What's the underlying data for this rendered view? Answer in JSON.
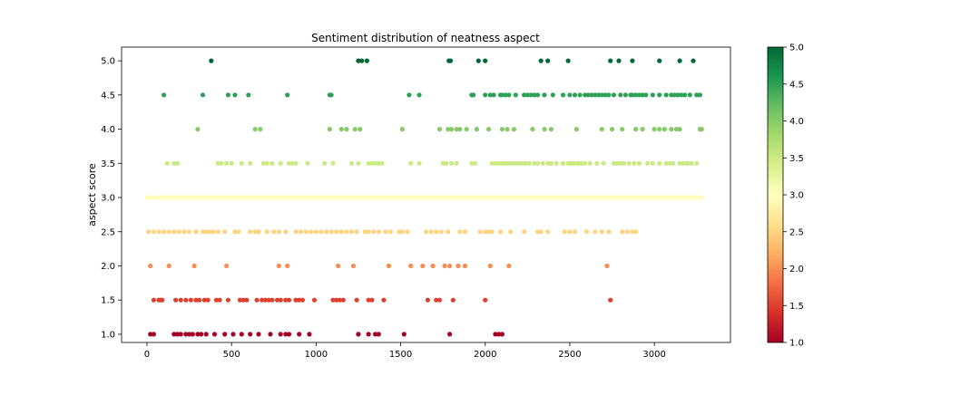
{
  "chart_data": {
    "type": "scatter",
    "title": "Sentiment distribution of neatness aspect",
    "xlabel": "",
    "ylabel": "aspect score",
    "xlim": [
      -150,
      3450
    ],
    "ylim": [
      0.88,
      5.2
    ],
    "x_ticks": [
      0,
      500,
      1000,
      1500,
      2000,
      2500,
      3000
    ],
    "y_ticks": [
      1.0,
      1.5,
      2.0,
      2.5,
      3.0,
      3.5,
      4.0,
      4.5,
      5.0
    ],
    "colorbar": {
      "label": "",
      "range": [
        1.0,
        5.0
      ],
      "ticks": [
        1.0,
        1.5,
        2.0,
        2.5,
        3.0,
        3.5,
        4.0,
        4.5,
        5.0
      ],
      "colormap": "RdYlGn",
      "colors": [
        "#a50026",
        "#d73027",
        "#f46d43",
        "#fdae61",
        "#fee08b",
        "#ffffbf",
        "#d9ef8b",
        "#a6d96a",
        "#66bd63",
        "#1a9850",
        "#006837"
      ]
    },
    "grid": false,
    "legend": "none",
    "series": [
      {
        "y": 5.0,
        "x": [
          380,
          1250,
          1270,
          1300,
          1785,
          1795,
          1960,
          2000,
          2330,
          2370,
          2490,
          2740,
          2790,
          2870,
          3030,
          3150,
          3230
        ]
      },
      {
        "y": 4.5,
        "x": [
          100,
          330,
          480,
          520,
          600,
          830,
          1080,
          1090,
          1550,
          1610,
          1920,
          1930,
          2000,
          2030,
          2050,
          2090,
          2100,
          2120,
          2140,
          2180,
          2230,
          2250,
          2270,
          2290,
          2310,
          2350,
          2400,
          2460,
          2500,
          2530,
          2560,
          2590,
          2610,
          2630,
          2650,
          2670,
          2690,
          2710,
          2730,
          2760,
          2800,
          2830,
          2860,
          2870,
          2890,
          2910,
          2930,
          2950,
          2990,
          3030,
          3070,
          3100,
          3120,
          3140,
          3160,
          3180,
          3210,
          3250,
          3270
        ]
      },
      {
        "y": 4.0,
        "x": [
          300,
          640,
          670,
          1080,
          1150,
          1180,
          1230,
          1260,
          1510,
          1730,
          1780,
          1800,
          1830,
          1850,
          1890,
          1950,
          2020,
          2100,
          2130,
          2170,
          2280,
          2350,
          2390,
          2540,
          2690,
          2750,
          2810,
          2890,
          2930,
          3000,
          3030,
          3060,
          3100,
          3130,
          3150,
          3270,
          3280
        ]
      },
      {
        "y": 3.5,
        "x": [
          120,
          160,
          180,
          420,
          440,
          470,
          500,
          560,
          610,
          690,
          710,
          740,
          790,
          840,
          860,
          880,
          950,
          1050,
          1100,
          1210,
          1250,
          1310,
          1330,
          1350,
          1370,
          1390,
          1560,
          1610,
          1750,
          1770,
          1800,
          1830,
          1920,
          1940,
          2040,
          2060,
          2080,
          2100,
          2120,
          2140,
          2160,
          2180,
          2200,
          2220,
          2240,
          2260,
          2290,
          2310,
          2340,
          2370,
          2390,
          2420,
          2460,
          2490,
          2500,
          2510,
          2520,
          2530,
          2550,
          2570,
          2590,
          2620,
          2660,
          2700,
          2760,
          2780,
          2800,
          2820,
          2850,
          2880,
          2910,
          2960,
          2990,
          3030,
          3070,
          3090,
          3110,
          3150,
          3170,
          3190,
          3200,
          3220,
          3250
        ]
      },
      {
        "y": 3.0,
        "x": [
          0,
          3280
        ],
        "continuous": true
      },
      {
        "y": 2.5,
        "x": [
          10,
          40,
          70,
          100,
          130,
          160,
          190,
          220,
          250,
          290,
          330,
          350,
          370,
          390,
          420,
          460,
          520,
          540,
          610,
          640,
          660,
          710,
          750,
          780,
          820,
          880,
          910,
          940,
          970,
          1000,
          1030,
          1060,
          1090,
          1120,
          1150,
          1180,
          1210,
          1240,
          1290,
          1310,
          1340,
          1370,
          1410,
          1440,
          1490,
          1510,
          1540,
          1650,
          1680,
          1710,
          1740,
          1780,
          1850,
          1880,
          1970,
          2000,
          2020,
          2040,
          2090,
          2150,
          2230,
          2310,
          2330,
          2370,
          2470,
          2500,
          2530,
          2600,
          2650,
          2690,
          2730,
          2810,
          2840,
          2870,
          2890
        ]
      },
      {
        "y": 2.0,
        "x": [
          20,
          130,
          280,
          470,
          780,
          830,
          1130,
          1220,
          1430,
          1560,
          1630,
          1690,
          1760,
          1790,
          1840,
          1880,
          2030,
          2140,
          2720
        ]
      },
      {
        "y": 1.5,
        "x": [
          40,
          70,
          80,
          90,
          170,
          200,
          230,
          260,
          290,
          310,
          340,
          360,
          410,
          430,
          480,
          550,
          570,
          590,
          650,
          680,
          700,
          720,
          740,
          770,
          790,
          820,
          840,
          880,
          900,
          920,
          990,
          1100,
          1120,
          1140,
          1160,
          1240,
          1310,
          1330,
          1400,
          1660,
          1710,
          1730,
          1810,
          2000,
          2740
        ]
      },
      {
        "y": 1.0,
        "x": [
          20,
          40,
          160,
          180,
          200,
          230,
          250,
          270,
          300,
          320,
          350,
          400,
          460,
          510,
          560,
          610,
          660,
          730,
          790,
          820,
          840,
          900,
          960,
          1250,
          1310,
          1350,
          1370,
          1520,
          1790,
          2060,
          2080,
          2100
        ]
      }
    ]
  }
}
